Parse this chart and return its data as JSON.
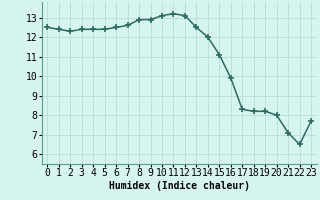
{
  "x": [
    0,
    1,
    2,
    3,
    4,
    5,
    6,
    7,
    8,
    9,
    10,
    11,
    12,
    13,
    14,
    15,
    16,
    17,
    18,
    19,
    20,
    21,
    22,
    23
  ],
  "y": [
    12.5,
    12.4,
    12.3,
    12.4,
    12.4,
    12.4,
    12.5,
    12.6,
    12.9,
    12.9,
    13.1,
    13.2,
    13.1,
    12.5,
    12.0,
    11.1,
    9.9,
    8.3,
    8.2,
    8.2,
    8.0,
    7.1,
    6.5,
    7.7
  ],
  "xlabel": "Humidex (Indice chaleur)",
  "xlim": [
    -0.5,
    23.5
  ],
  "ylim": [
    5.5,
    13.8
  ],
  "yticks": [
    6,
    7,
    8,
    9,
    10,
    11,
    12,
    13
  ],
  "xticks": [
    0,
    1,
    2,
    3,
    4,
    5,
    6,
    7,
    8,
    9,
    10,
    11,
    12,
    13,
    14,
    15,
    16,
    17,
    18,
    19,
    20,
    21,
    22,
    23
  ],
  "line_color": "#2d6b5e",
  "marker": "+",
  "marker_size": 4,
  "marker_linewidth": 1.2,
  "linewidth": 1.1,
  "bg_color": "#d6f5f0",
  "grid_color": "#b8ddd8",
  "label_fontsize": 7,
  "tick_fontsize": 7
}
